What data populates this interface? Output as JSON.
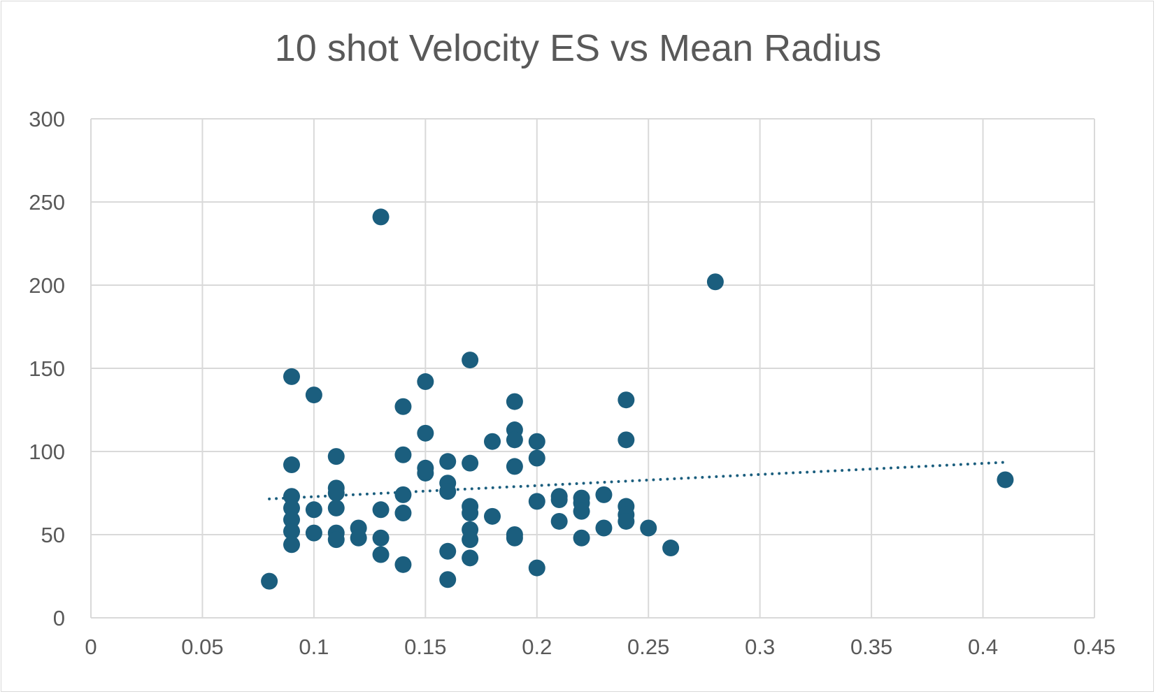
{
  "chart_data": {
    "type": "scatter",
    "title": "10 shot Velocity ES vs Mean Radius",
    "xlabel": "",
    "ylabel": "",
    "xlim": [
      0,
      0.45
    ],
    "ylim": [
      0,
      300
    ],
    "x_ticks": [
      "0",
      "0.05",
      "0.1",
      "0.15",
      "0.2",
      "0.25",
      "0.3",
      "0.35",
      "0.4",
      "0.45"
    ],
    "y_ticks": [
      "0",
      "50",
      "100",
      "150",
      "200",
      "250",
      "300"
    ],
    "grid": true,
    "legend": "none",
    "marker_color": "#1b5e7e",
    "trendline": {
      "type": "linear",
      "style": "dotted",
      "x": [
        0.08,
        0.41
      ],
      "y": [
        71.5,
        93.5
      ]
    },
    "series": [
      {
        "points": [
          [
            0.08,
            22
          ],
          [
            0.09,
            145
          ],
          [
            0.09,
            92
          ],
          [
            0.09,
            73
          ],
          [
            0.09,
            66
          ],
          [
            0.09,
            59
          ],
          [
            0.09,
            52
          ],
          [
            0.09,
            44
          ],
          [
            0.1,
            134
          ],
          [
            0.1,
            65
          ],
          [
            0.1,
            51
          ],
          [
            0.11,
            97
          ],
          [
            0.11,
            78
          ],
          [
            0.11,
            75
          ],
          [
            0.11,
            66
          ],
          [
            0.11,
            51
          ],
          [
            0.11,
            47
          ],
          [
            0.12,
            54
          ],
          [
            0.12,
            48
          ],
          [
            0.13,
            241
          ],
          [
            0.13,
            65
          ],
          [
            0.13,
            48
          ],
          [
            0.13,
            38
          ],
          [
            0.14,
            127
          ],
          [
            0.14,
            98
          ],
          [
            0.14,
            74
          ],
          [
            0.14,
            63
          ],
          [
            0.14,
            32
          ],
          [
            0.15,
            142
          ],
          [
            0.15,
            111
          ],
          [
            0.15,
            90
          ],
          [
            0.15,
            87
          ],
          [
            0.16,
            94
          ],
          [
            0.16,
            81
          ],
          [
            0.16,
            76
          ],
          [
            0.16,
            40
          ],
          [
            0.16,
            23
          ],
          [
            0.17,
            155
          ],
          [
            0.17,
            93
          ],
          [
            0.17,
            67
          ],
          [
            0.17,
            63
          ],
          [
            0.17,
            53
          ],
          [
            0.17,
            47
          ],
          [
            0.17,
            36
          ],
          [
            0.18,
            106
          ],
          [
            0.18,
            61
          ],
          [
            0.19,
            130
          ],
          [
            0.19,
            113
          ],
          [
            0.19,
            107
          ],
          [
            0.19,
            91
          ],
          [
            0.19,
            50
          ],
          [
            0.19,
            48
          ],
          [
            0.2,
            106
          ],
          [
            0.2,
            96
          ],
          [
            0.2,
            70
          ],
          [
            0.2,
            30
          ],
          [
            0.21,
            73
          ],
          [
            0.21,
            71
          ],
          [
            0.21,
            58
          ],
          [
            0.22,
            72
          ],
          [
            0.22,
            69
          ],
          [
            0.22,
            64
          ],
          [
            0.22,
            48
          ],
          [
            0.23,
            74
          ],
          [
            0.23,
            54
          ],
          [
            0.24,
            131
          ],
          [
            0.24,
            107
          ],
          [
            0.24,
            67
          ],
          [
            0.24,
            62
          ],
          [
            0.24,
            58
          ],
          [
            0.25,
            54
          ],
          [
            0.26,
            42
          ],
          [
            0.28,
            202
          ],
          [
            0.41,
            83
          ]
        ]
      }
    ]
  }
}
